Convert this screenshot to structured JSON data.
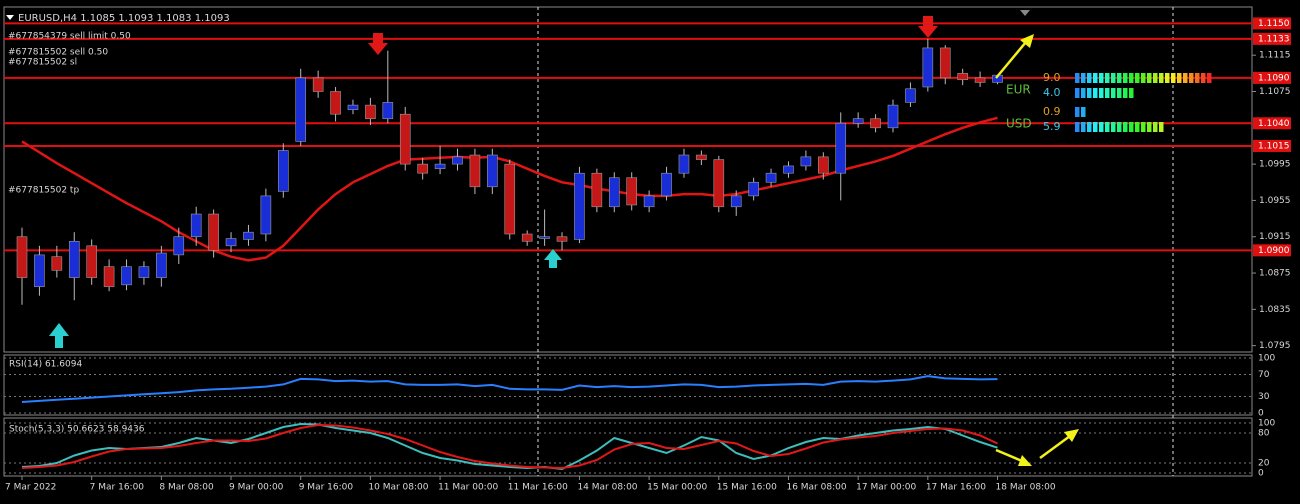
{
  "chart_data": [
    {
      "type": "candlestick",
      "title": "EURUSD,H4  1.1085 1.1093 1.1083 1.1093",
      "categories": [
        "7 Mar 2022",
        null,
        null,
        null,
        "7 Mar 16:00",
        null,
        null,
        null,
        "8 Mar 08:00",
        null,
        null,
        null,
        "9 Mar 00:00",
        null,
        null,
        null,
        "9 Mar 16:00",
        null,
        null,
        null,
        "10 Mar 08:00",
        null,
        null,
        null,
        "11 Mar 00:00",
        null,
        null,
        null,
        "11 Mar 16:00",
        null,
        null,
        null,
        "14 Mar 08:00",
        null,
        null,
        null,
        "15 Mar 00:00",
        null,
        null,
        null,
        "15 Mar 16:00",
        null,
        null,
        null,
        "16 Mar 08:00",
        null,
        null,
        null,
        "17 Mar 00:00",
        null,
        null,
        null,
        "17 Mar 16:00",
        null,
        null,
        null,
        "18 Mar 08:00"
      ],
      "open": [
        1.0915,
        1.086,
        1.0893,
        1.087,
        1.0905,
        1.0882,
        1.0862,
        1.087,
        1.087,
        1.0895,
        1.0915,
        1.094,
        1.0905,
        1.0912,
        1.0918,
        1.0965,
        1.102,
        1.109,
        1.1075,
        1.1055,
        1.106,
        1.1045,
        1.105,
        1.0995,
        1.099,
        1.0995,
        1.1005,
        1.097,
        1.0995,
        1.0918,
        1.0913,
        1.0915,
        1.0912,
        1.0985,
        1.0948,
        1.098,
        1.0948,
        1.096,
        1.0985,
        1.1005,
        1.1,
        1.0948,
        1.096,
        1.0975,
        1.0985,
        1.0993,
        1.1003,
        1.0985,
        1.104,
        1.1045,
        1.1035,
        1.1063,
        1.108,
        1.1123,
        1.1095,
        1.109,
        1.1085
      ],
      "high": [
        1.0925,
        1.0905,
        1.0905,
        1.092,
        1.0912,
        1.089,
        1.089,
        1.0888,
        1.0905,
        1.0925,
        1.0948,
        1.0945,
        1.092,
        1.0928,
        1.0968,
        1.1018,
        1.11,
        1.1098,
        1.108,
        1.1066,
        1.1068,
        1.112,
        1.1058,
        1.1002,
        1.1015,
        1.1012,
        1.1012,
        1.1012,
        1.1,
        1.0922,
        1.0945,
        1.092,
        1.0992,
        1.099,
        1.0986,
        1.0986,
        1.0966,
        1.0992,
        1.1012,
        1.101,
        1.1004,
        1.0966,
        1.098,
        1.099,
        1.0998,
        1.101,
        1.1008,
        1.1052,
        1.1052,
        1.105,
        1.1066,
        1.1085,
        1.1133,
        1.1126,
        1.11,
        1.1097,
        1.1093
      ],
      "low": [
        1.084,
        1.085,
        1.087,
        1.0845,
        1.0862,
        1.0855,
        1.0856,
        1.0862,
        1.086,
        1.0885,
        1.0905,
        1.0892,
        1.0898,
        1.0905,
        1.091,
        1.0958,
        1.1015,
        1.1068,
        1.1042,
        1.105,
        1.1038,
        1.104,
        1.0988,
        1.0978,
        1.0984,
        1.0988,
        1.0962,
        1.0962,
        1.0912,
        1.0905,
        1.0905,
        1.09,
        1.0908,
        1.0942,
        1.0942,
        1.0944,
        1.0942,
        1.0955,
        1.098,
        1.0994,
        1.0942,
        1.0938,
        1.0955,
        1.097,
        1.098,
        1.0988,
        1.0978,
        1.0955,
        1.1035,
        1.103,
        1.103,
        1.1058,
        1.1075,
        1.1083,
        1.1082,
        1.108,
        1.1083
      ],
      "close": [
        1.087,
        1.0895,
        1.0878,
        1.091,
        1.087,
        1.086,
        1.0882,
        1.0882,
        1.0897,
        1.0915,
        1.094,
        1.09,
        1.0913,
        1.092,
        1.096,
        1.101,
        1.109,
        1.1075,
        1.105,
        1.106,
        1.1045,
        1.1063,
        1.0995,
        1.0985,
        1.0995,
        1.1003,
        1.097,
        1.1005,
        1.0918,
        1.091,
        1.0915,
        1.091,
        1.0985,
        1.0948,
        1.098,
        1.095,
        1.096,
        1.0985,
        1.1005,
        1.1,
        1.0948,
        1.096,
        1.0975,
        1.0985,
        1.0993,
        1.1003,
        1.0985,
        1.104,
        1.1045,
        1.1035,
        1.106,
        1.1078,
        1.1123,
        1.109,
        1.1088,
        1.1085,
        1.1093
      ],
      "up_color": "#1a2ed8",
      "down_color": "#c41818",
      "lines": [
        {
          "color": "#e01515",
          "values": [
            1.102,
            1.1008,
            1.0996,
            1.0985,
            1.0974,
            1.0963,
            1.0952,
            1.0942,
            1.0932,
            1.092,
            1.091,
            1.09,
            1.0893,
            1.0889,
            1.0892,
            1.0905,
            1.0925,
            1.0945,
            1.0962,
            1.0975,
            1.0984,
            1.0993,
            1.1,
            1.1001,
            1.1002,
            1.1003,
            1.1002,
            1.1003,
            1.0998,
            1.099,
            1.0982,
            1.0975,
            1.0972,
            1.0968,
            1.0965,
            1.0962,
            1.096,
            1.096,
            1.0962,
            1.0962,
            1.096,
            1.0962,
            1.0966,
            1.097,
            1.0974,
            1.0978,
            1.0982,
            1.0988,
            1.0993,
            1.0998,
            1.1004,
            1.1012,
            1.102,
            1.1028,
            1.1035,
            1.1041,
            1.1046
          ]
        }
      ],
      "ylim": [
        1.0788,
        1.1167
      ],
      "yticks": [
        1.1115,
        1.1075,
        1.0995,
        1.0955,
        1.0915,
        1.0875,
        1.0835,
        1.0795
      ],
      "levels": [
        {
          "value": 1.115,
          "label": "1.1150"
        },
        1.1133,
        {
          "value": 1.109,
          "label": "1.1090"
        },
        {
          "value": 1.104,
          "label": "1.1040"
        },
        1.1015,
        {
          "value": 1.09,
          "label": "1.0900"
        }
      ],
      "level_color": "#e01010",
      "orders": [
        "#677854379 sell limit 0.50",
        "#677815502 sell 0.50",
        "#677815502 sl",
        "#677815502 tp"
      ],
      "strength": [
        {
          "currency": "EUR",
          "values": [
            9,
            4
          ],
          "value_labels": [
            "9.0",
            "4.0"
          ],
          "color": "#5fbf3a"
        },
        {
          "currency": "USD",
          "values": [
            0.9,
            5.9
          ],
          "value_labels": [
            "0.9",
            "5.9"
          ],
          "color": "#5fbf3a"
        }
      ]
    },
    {
      "type": "line",
      "title": "RSI(14) 61.6094",
      "series": [
        {
          "color": "#2a7fff",
          "values": [
            20,
            22,
            24,
            26,
            28,
            30,
            32,
            34,
            36,
            38,
            41,
            43,
            44,
            46,
            48,
            52,
            62,
            61,
            58,
            59,
            57,
            58,
            52,
            51,
            51,
            52,
            49,
            51,
            44,
            43,
            43,
            42,
            50,
            47,
            49,
            47,
            48,
            50,
            52,
            51,
            47,
            48,
            50,
            51,
            52,
            53,
            51,
            57,
            58,
            57,
            59,
            61,
            67,
            63,
            62,
            61,
            61.6094
          ]
        }
      ],
      "ylim": [
        0,
        100
      ],
      "yticks": [
        100,
        70,
        30,
        0
      ]
    },
    {
      "type": "line",
      "title": "Stoch(5,3,3) 50.6623 58.9436",
      "series": [
        {
          "color": "#3fbcbc",
          "values": [
            12,
            14,
            20,
            35,
            45,
            50,
            48,
            50,
            52,
            60,
            70,
            65,
            60,
            68,
            80,
            92,
            98,
            97,
            90,
            85,
            80,
            70,
            55,
            40,
            30,
            25,
            18,
            15,
            12,
            10,
            12,
            8,
            25,
            45,
            70,
            60,
            50,
            40,
            55,
            72,
            65,
            40,
            28,
            35,
            50,
            62,
            70,
            68,
            75,
            80,
            85,
            88,
            92,
            88,
            75,
            62,
            50.6623
          ]
        },
        {
          "color": "#e01818",
          "values": [
            10,
            12,
            15,
            22,
            33,
            43,
            48,
            49,
            50,
            54,
            60,
            65,
            65,
            64,
            69,
            80,
            90,
            96,
            95,
            91,
            85,
            78,
            68,
            55,
            42,
            32,
            24,
            19,
            15,
            12,
            11,
            10,
            15,
            26,
            47,
            58,
            60,
            50,
            48,
            56,
            64,
            59,
            44,
            34,
            38,
            49,
            61,
            67,
            71,
            74,
            80,
            84,
            88,
            89,
            85,
            75,
            58.9436
          ]
        }
      ],
      "ylim": [
        0,
        100
      ],
      "yticks": [
        100,
        80,
        20,
        0
      ]
    }
  ]
}
